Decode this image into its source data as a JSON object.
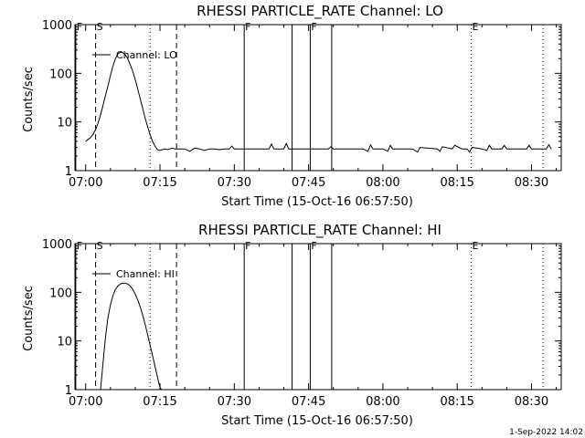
{
  "chart_data": [
    {
      "type": "line",
      "title": "RHESSI PARTICLE_RATE Channel: LO",
      "xlabel": "Start Time (15-Oct-16 06:57:50)",
      "ylabel": "Counts/sec",
      "y_scale": "log",
      "ylim": [
        1,
        1000
      ],
      "xlim": [
        "06:57:50",
        "08:36:00"
      ],
      "x_ticks": [
        "07:00",
        "07:15",
        "07:30",
        "07:45",
        "08:00",
        "08:15",
        "08:30"
      ],
      "y_ticks": [
        "1",
        "10",
        "100",
        "1000"
      ],
      "legend": "Channel: LO",
      "legend_position": "top-left",
      "series": [
        {
          "name": "Channel: LO",
          "x": [
            "07:00:00",
            "07:00:30",
            "07:01:00",
            "07:01:30",
            "07:02:00",
            "07:02:30",
            "07:03:00",
            "07:03:30",
            "07:04:00",
            "07:04:30",
            "07:05:00",
            "07:05:30",
            "07:06:00",
            "07:06:30",
            "07:07:00",
            "07:07:30",
            "07:08:00",
            "07:08:30",
            "07:09:00",
            "07:09:30",
            "07:10:00",
            "07:10:30",
            "07:11:00",
            "07:11:30",
            "07:12:00",
            "07:12:30",
            "07:13:00",
            "07:13:30",
            "07:14:00",
            "07:14:30",
            "07:15:00",
            "07:15:30",
            "07:16:00",
            "07:16:30",
            "07:17:00",
            "07:17:30",
            "07:18:00",
            "07:18:30",
            "07:19:00",
            "07:20:00",
            "07:21:00",
            "07:22:00",
            "07:23:00",
            "07:24:00",
            "07:25:00",
            "07:26:00",
            "07:27:00",
            "07:28:00",
            "07:29:00",
            "07:29:30",
            "07:30:00",
            "07:31:00",
            "07:33:00",
            "07:36:00",
            "07:37:00",
            "07:37:30",
            "07:38:00",
            "07:40:00",
            "07:40:30",
            "07:41:00",
            "07:44:00",
            "07:47:00",
            "07:49:00",
            "07:49:30",
            "07:50:00",
            "07:52:00",
            "07:56:00",
            "07:57:00",
            "07:57:30",
            "07:58:00",
            "08:00:00",
            "08:01:00",
            "08:01:30",
            "08:02:00",
            "08:06:00",
            "08:07:00",
            "08:07:30",
            "08:11:00",
            "08:11:30",
            "08:12:00",
            "08:14:00",
            "08:14:30",
            "08:16:00",
            "08:17:00",
            "08:17:30",
            "08:18:00",
            "08:20:00",
            "08:21:00",
            "08:21:30",
            "08:22:00",
            "08:23:00",
            "08:24:00",
            "08:24:30",
            "08:25:00",
            "08:28:00",
            "08:29:00",
            "08:29:30",
            "08:30:00",
            "08:32:00",
            "08:33:00",
            "08:33:30",
            "08:34:00"
          ],
          "y": [
            4.0,
            4.4,
            4.8,
            5.6,
            7.0,
            9.5,
            14,
            22,
            35,
            55,
            90,
            140,
            200,
            250,
            270,
            265,
            240,
            200,
            150,
            110,
            75,
            48,
            30,
            19,
            12,
            8.0,
            5.5,
            4.0,
            3.2,
            2.7,
            2.6,
            2.7,
            2.8,
            2.7,
            2.8,
            2.9,
            2.8,
            2.8,
            2.8,
            2.8,
            2.5,
            2.9,
            2.8,
            2.6,
            2.8,
            2.8,
            2.7,
            2.8,
            2.8,
            3.2,
            2.8,
            2.8,
            2.8,
            2.8,
            2.8,
            3.5,
            2.8,
            2.8,
            3.6,
            2.8,
            2.8,
            2.8,
            2.8,
            3.1,
            2.8,
            2.8,
            2.8,
            2.5,
            3.4,
            2.8,
            2.8,
            2.5,
            3.3,
            2.8,
            2.8,
            2.4,
            3.0,
            2.8,
            2.5,
            3.1,
            2.8,
            3.3,
            2.8,
            2.8,
            2.4,
            3.0,
            2.8,
            2.6,
            3.3,
            2.8,
            2.8,
            2.8,
            3.3,
            2.8,
            2.8,
            2.8,
            3.3,
            2.8,
            2.8,
            2.8,
            3.4,
            2.8
          ]
        }
      ],
      "annotations": [
        {
          "label": "F",
          "time": "06:58:00",
          "style": "solid"
        },
        {
          "label": "S",
          "time": "07:02:00",
          "style": "dashed"
        },
        {
          "label": "",
          "time": "07:18:20",
          "style": "dashed"
        },
        {
          "label": "",
          "time": "07:13:00",
          "style": "dotted"
        },
        {
          "label": "F",
          "time": "07:32:00",
          "style": "solid"
        },
        {
          "label": "",
          "time": "07:41:40",
          "style": "solid"
        },
        {
          "label": "F",
          "time": "07:45:20",
          "style": "solid"
        },
        {
          "label": "",
          "time": "07:49:40",
          "style": "solid"
        },
        {
          "label": "E",
          "time": "08:17:50",
          "style": "dotted"
        },
        {
          "label": "",
          "time": "08:32:20",
          "style": "dotted"
        }
      ]
    },
    {
      "type": "line",
      "title": "RHESSI PARTICLE_RATE Channel: HI",
      "xlabel": "Start Time (15-Oct-16 06:57:50)",
      "ylabel": "Counts/sec",
      "y_scale": "log",
      "ylim": [
        1,
        1000
      ],
      "xlim": [
        "06:57:50",
        "08:36:00"
      ],
      "x_ticks": [
        "07:00",
        "07:15",
        "07:30",
        "07:45",
        "08:00",
        "08:15",
        "08:30"
      ],
      "y_ticks": [
        "1",
        "10",
        "100",
        "1000"
      ],
      "legend": "Channel: HI",
      "legend_position": "top-left",
      "series": [
        {
          "name": "Channel: HI",
          "x": [
            "07:03:00",
            "07:03:30",
            "07:04:00",
            "07:04:30",
            "07:05:00",
            "07:05:30",
            "07:06:00",
            "07:06:30",
            "07:07:00",
            "07:07:30",
            "07:08:00",
            "07:08:30",
            "07:09:00",
            "07:09:30",
            "07:10:00",
            "07:10:30",
            "07:11:00",
            "07:11:30",
            "07:12:00",
            "07:12:30",
            "07:13:00",
            "07:13:30",
            "07:14:00",
            "07:14:30",
            "07:15:00",
            "07:15:20"
          ],
          "y": [
            1.0,
            3.5,
            12,
            30,
            55,
            85,
            115,
            135,
            148,
            155,
            155,
            148,
            135,
            115,
            92,
            70,
            50,
            34,
            22,
            13.5,
            8.2,
            5.0,
            3.0,
            1.8,
            1.1,
            1.0
          ]
        }
      ],
      "annotations": [
        {
          "label": "F",
          "time": "06:58:00",
          "style": "solid"
        },
        {
          "label": "S",
          "time": "07:02:00",
          "style": "dashed"
        },
        {
          "label": "",
          "time": "07:18:20",
          "style": "dashed"
        },
        {
          "label": "",
          "time": "07:13:00",
          "style": "dotted"
        },
        {
          "label": "F",
          "time": "07:32:00",
          "style": "solid"
        },
        {
          "label": "",
          "time": "07:41:40",
          "style": "solid"
        },
        {
          "label": "F",
          "time": "07:45:20",
          "style": "solid"
        },
        {
          "label": "",
          "time": "07:49:40",
          "style": "solid"
        },
        {
          "label": "E",
          "time": "08:17:50",
          "style": "dotted"
        },
        {
          "label": "",
          "time": "08:32:20",
          "style": "dotted"
        }
      ]
    }
  ],
  "footer": {
    "stamp": "1-Sep-2022 14:02"
  }
}
